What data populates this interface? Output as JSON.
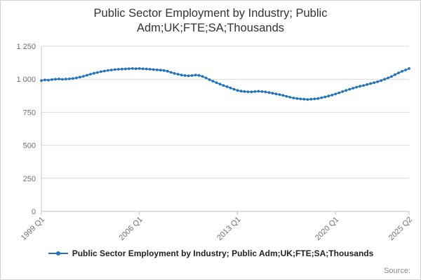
{
  "title": "Public Sector Employment by Industry; Public Adm;UK;FTE;SA;Thousands",
  "source_label": "Source:",
  "legend": {
    "label": "Public Sector Employment by Industry; Public Adm;UK;FTE;SA;Thousands"
  },
  "chart_data": {
    "type": "line",
    "title": "Public Sector Employment by Industry; Public Adm;UK;FTE;SA;Thousands",
    "series_name": "Public Sector Employment by Industry; Public Adm;UK;FTE;SA;Thousands",
    "x_period": "quarterly",
    "x_start": "1999 Q1",
    "x_end": "2025 Q2",
    "x_tick_labels": [
      "1999 Q1",
      "2006 Q1",
      "2013 Q1",
      "2020 Q1",
      "2025 Q2"
    ],
    "x_tick_indices": [
      0,
      28,
      56,
      84,
      105
    ],
    "y_ticks": [
      0,
      250,
      500,
      750,
      1000,
      1250
    ],
    "y_tick_labels": [
      "0",
      "250",
      "500",
      "750",
      "1 000",
      "1 250"
    ],
    "ylim": [
      0,
      1250
    ],
    "ylabel": "",
    "xlabel": "",
    "grid": true,
    "legend_position": "bottom",
    "line_color": "#2073bc",
    "grid_color": "#d9d9d9",
    "axis_color": "#c0c0c0",
    "tick_label_color": "#707070",
    "values": [
      990,
      995,
      993,
      998,
      1000,
      1002,
      999,
      1001,
      1003,
      1006,
      1010,
      1016,
      1022,
      1030,
      1038,
      1045,
      1051,
      1057,
      1062,
      1067,
      1070,
      1073,
      1075,
      1077,
      1078,
      1080,
      1081,
      1080,
      1081,
      1079,
      1078,
      1076,
      1073,
      1071,
      1069,
      1066,
      1061,
      1052,
      1044,
      1038,
      1032,
      1028,
      1026,
      1028,
      1031,
      1029,
      1021,
      1010,
      997,
      985,
      974,
      963,
      953,
      944,
      934,
      924,
      915,
      910,
      907,
      905,
      904,
      907,
      909,
      907,
      904,
      899,
      894,
      889,
      884,
      878,
      871,
      864,
      858,
      854,
      851,
      849,
      847,
      849,
      851,
      854,
      860,
      866,
      873,
      880,
      888,
      897,
      906,
      915,
      924,
      932,
      940,
      947,
      953,
      960,
      967,
      974,
      981,
      990,
      1000,
      1010,
      1020,
      1035,
      1048,
      1060,
      1070,
      1081
    ]
  }
}
